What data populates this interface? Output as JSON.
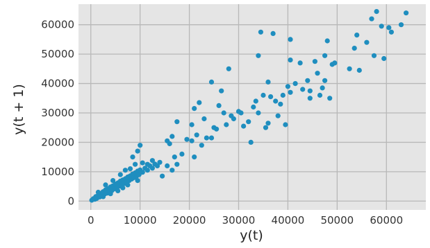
{
  "chart_data": {
    "type": "scatter",
    "title": "",
    "xlabel": "y(t)",
    "ylabel": "y(t + 1)",
    "xlim": [
      -2500,
      68000
    ],
    "ylim": [
      -3000,
      67000
    ],
    "xticks": [
      0,
      10000,
      20000,
      30000,
      40000,
      50000,
      60000
    ],
    "yticks": [
      0,
      10000,
      20000,
      30000,
      40000,
      50000,
      60000
    ],
    "grid": true,
    "legend": "none",
    "colors": {
      "background": "#e5e5e5",
      "grid": "#b8b8b8",
      "point": "#1f8ebf"
    },
    "series": [
      {
        "values": [
          [
            200,
            300
          ],
          [
            500,
            800
          ],
          [
            800,
            600
          ],
          [
            1000,
            1500
          ],
          [
            1200,
            900
          ],
          [
            1500,
            2000
          ],
          [
            1800,
            1400
          ],
          [
            2000,
            2600
          ],
          [
            2300,
            1800
          ],
          [
            2500,
            3200
          ],
          [
            2800,
            2400
          ],
          [
            3000,
            3800
          ],
          [
            3300,
            2700
          ],
          [
            3500,
            4200
          ],
          [
            3800,
            3300
          ],
          [
            4000,
            4800
          ],
          [
            4300,
            3600
          ],
          [
            4500,
            5200
          ],
          [
            4800,
            4200
          ],
          [
            5000,
            5800
          ],
          [
            5300,
            4700
          ],
          [
            5500,
            6200
          ],
          [
            5800,
            5100
          ],
          [
            6000,
            6800
          ],
          [
            6300,
            5600
          ],
          [
            6500,
            7200
          ],
          [
            6800,
            6000
          ],
          [
            7000,
            7600
          ],
          [
            7300,
            6500
          ],
          [
            7500,
            8200
          ],
          [
            7800,
            7000
          ],
          [
            8000,
            8600
          ],
          [
            8300,
            7500
          ],
          [
            8500,
            9200
          ],
          [
            8800,
            8000
          ],
          [
            9000,
            9600
          ],
          [
            9300,
            8500
          ],
          [
            9500,
            10200
          ],
          [
            9800,
            9000
          ],
          [
            10000,
            10600
          ],
          [
            10500,
            9800
          ],
          [
            11000,
            11200
          ],
          [
            11500,
            10500
          ],
          [
            12000,
            12000
          ],
          [
            12500,
            11200
          ],
          [
            13000,
            12600
          ],
          [
            13500,
            12000
          ],
          [
            14000,
            13200
          ],
          [
            3000,
            5500
          ],
          [
            4500,
            7000
          ],
          [
            6000,
            9000
          ],
          [
            7000,
            10500
          ],
          [
            8000,
            11000
          ],
          [
            9000,
            12500
          ],
          [
            6500,
            4500
          ],
          [
            7500,
            5500
          ],
          [
            9500,
            7000
          ],
          [
            2500,
            1500
          ],
          [
            1500,
            3000
          ],
          [
            5500,
            3500
          ],
          [
            4000,
            2500
          ],
          [
            10500,
            13000
          ],
          [
            11500,
            12500
          ],
          [
            12500,
            13800
          ],
          [
            10000,
            19000
          ],
          [
            9500,
            17000
          ],
          [
            8500,
            15000
          ],
          [
            15500,
            20500
          ],
          [
            16000,
            19500
          ],
          [
            16500,
            22000
          ],
          [
            17000,
            15000
          ],
          [
            17500,
            12500
          ],
          [
            16500,
            10500
          ],
          [
            14500,
            8500
          ],
          [
            15500,
            12000
          ],
          [
            17500,
            27000
          ],
          [
            18500,
            16000
          ],
          [
            19500,
            21000
          ],
          [
            20500,
            20500
          ],
          [
            20500,
            26000
          ],
          [
            21000,
            15000
          ],
          [
            21000,
            31500
          ],
          [
            21500,
            22500
          ],
          [
            22000,
            33500
          ],
          [
            23000,
            28000
          ],
          [
            22500,
            19000
          ],
          [
            23500,
            21500
          ],
          [
            24500,
            21500
          ],
          [
            24500,
            40500
          ],
          [
            25000,
            25000
          ],
          [
            25500,
            24500
          ],
          [
            26000,
            32500
          ],
          [
            26500,
            37500
          ],
          [
            27000,
            30000
          ],
          [
            27500,
            26000
          ],
          [
            28000,
            45000
          ],
          [
            28500,
            29000
          ],
          [
            29000,
            28000
          ],
          [
            30000,
            30500
          ],
          [
            30500,
            30000
          ],
          [
            31000,
            25500
          ],
          [
            32000,
            27000
          ],
          [
            32500,
            20000
          ],
          [
            33000,
            32000
          ],
          [
            33500,
            34000
          ],
          [
            34000,
            30000
          ],
          [
            34000,
            49500
          ],
          [
            34500,
            57500
          ],
          [
            35000,
            36000
          ],
          [
            35500,
            25000
          ],
          [
            36000,
            26500
          ],
          [
            36000,
            40500
          ],
          [
            36500,
            35500
          ],
          [
            37000,
            57000
          ],
          [
            37500,
            34000
          ],
          [
            38000,
            29000
          ],
          [
            38500,
            33000
          ],
          [
            39000,
            36000
          ],
          [
            39500,
            26000
          ],
          [
            40000,
            39000
          ],
          [
            40500,
            37000
          ],
          [
            40500,
            48000
          ],
          [
            40500,
            55000
          ],
          [
            41500,
            40000
          ],
          [
            42500,
            47000
          ],
          [
            43000,
            38000
          ],
          [
            44000,
            41000
          ],
          [
            44500,
            35000
          ],
          [
            44500,
            37500
          ],
          [
            45500,
            47500
          ],
          [
            46000,
            43500
          ],
          [
            46500,
            36000
          ],
          [
            47000,
            38500
          ],
          [
            47500,
            41000
          ],
          [
            47500,
            49500
          ],
          [
            48000,
            54500
          ],
          [
            48500,
            35000
          ],
          [
            49000,
            46500
          ],
          [
            49500,
            47000
          ],
          [
            52500,
            45000
          ],
          [
            53500,
            52000
          ],
          [
            54000,
            56500
          ],
          [
            54500,
            44500
          ],
          [
            56000,
            54000
          ],
          [
            57000,
            62000
          ],
          [
            57500,
            49500
          ],
          [
            58000,
            64500
          ],
          [
            59000,
            59500
          ],
          [
            59500,
            48500
          ],
          [
            60500,
            59000
          ],
          [
            61000,
            57500
          ],
          [
            63000,
            60000
          ],
          [
            64000,
            64000
          ]
        ]
      }
    ]
  }
}
